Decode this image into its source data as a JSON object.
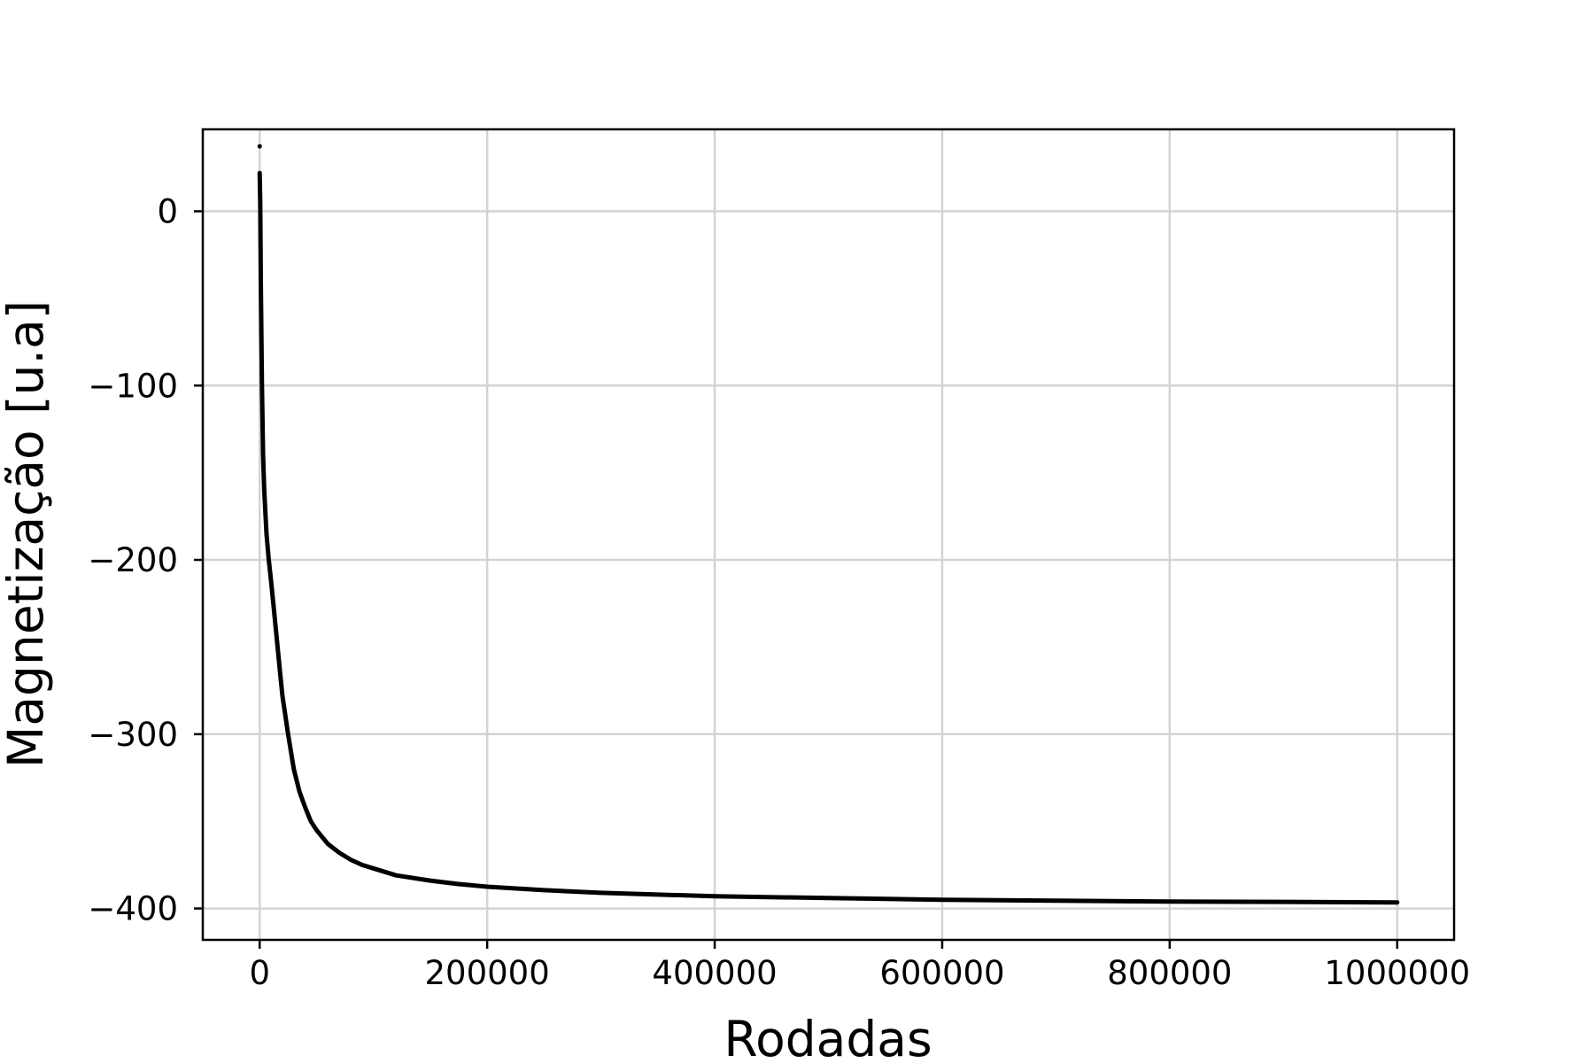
{
  "chart_data": {
    "type": "line",
    "title": "",
    "xlabel": "Rodadas",
    "ylabel": "Magnetização [u.a]",
    "xlim": [
      -50000,
      1050000
    ],
    "ylim": [
      -418,
      47
    ],
    "xticks": [
      0,
      200000,
      400000,
      600000,
      800000,
      1000000
    ],
    "xtick_labels": [
      "0",
      "200000",
      "400000",
      "600000",
      "800000",
      "1000000"
    ],
    "yticks": [
      0,
      -100,
      -200,
      -300,
      -400
    ],
    "ytick_labels": [
      "0",
      "−100",
      "−200",
      "−300",
      "−400"
    ],
    "grid": true,
    "legend": "none",
    "colors": {
      "line": "#000000",
      "grid": "#d3d3d3",
      "frame": "#000000",
      "background": "#ffffff"
    },
    "series": [
      {
        "x": [
          0,
          500,
          1000,
          2000,
          3000,
          4000,
          6000,
          8000,
          10000,
          12000,
          15000,
          18000,
          20000,
          25000,
          30000,
          35000,
          40000,
          45000,
          50000,
          60000,
          70000,
          80000,
          90000,
          100000,
          120000,
          150000,
          175000,
          200000,
          250000,
          300000,
          350000,
          400000,
          500000,
          600000,
          700000,
          800000,
          900000,
          1000000
        ],
        "y": [
          22,
          5,
          -40,
          -100,
          -140,
          -160,
          -185,
          -200,
          -212,
          -225,
          -245,
          -265,
          -278,
          -300,
          -320,
          -333,
          -342,
          -350,
          -355,
          -363,
          -368,
          -372,
          -375,
          -377,
          -381,
          -384,
          -386,
          -387.5,
          -389.5,
          -391,
          -392,
          -393,
          -394,
          -395,
          -395.5,
          -396,
          -396.2,
          -396.5
        ]
      }
    ]
  }
}
